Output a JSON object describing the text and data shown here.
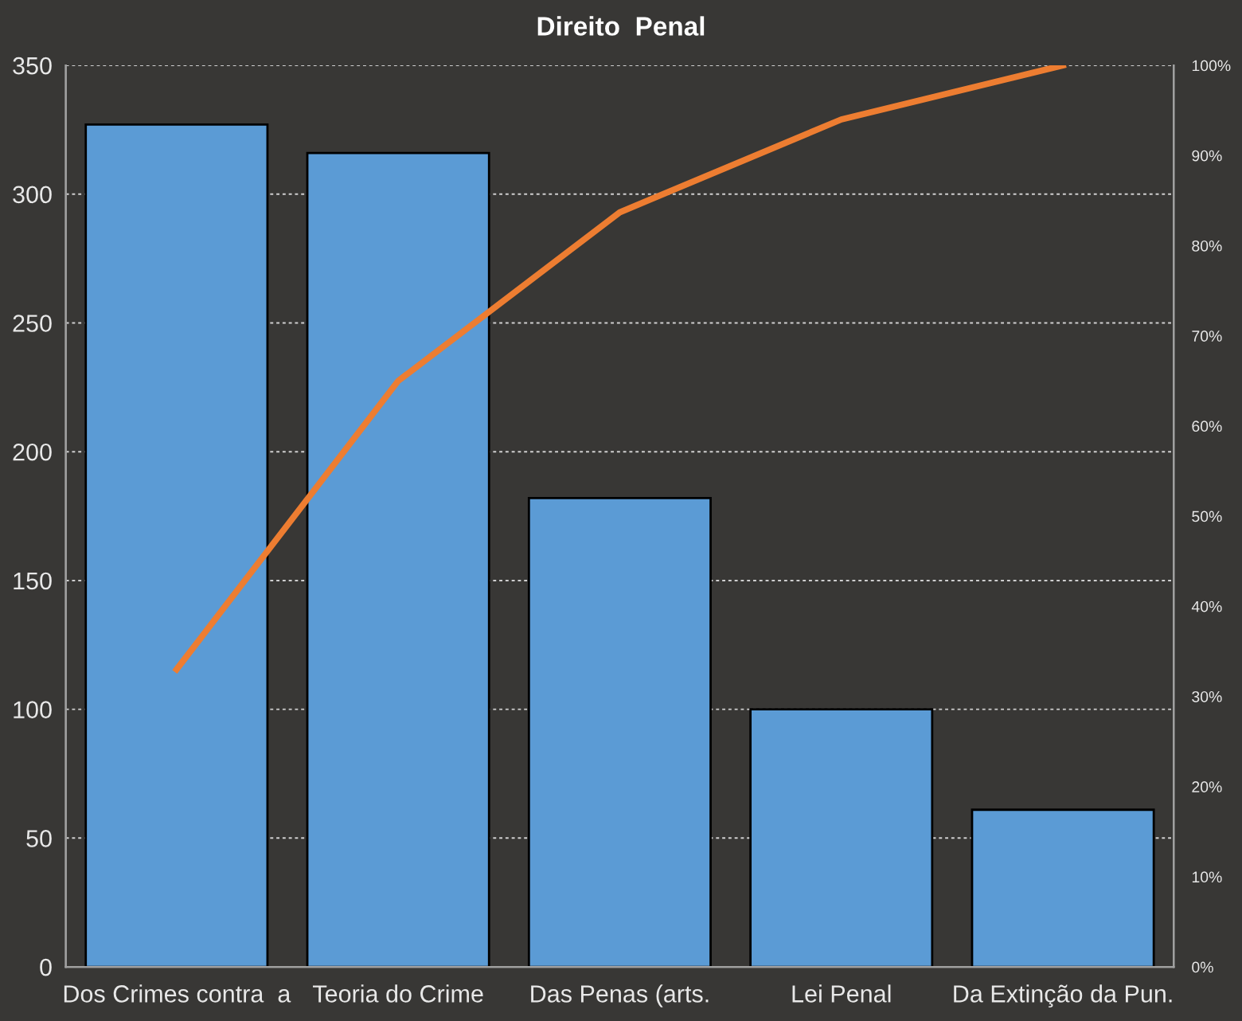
{
  "chart_data": {
    "type": "bar",
    "title": "Direito  Penal",
    "categories": [
      "Dos Crimes contra  a",
      "Teoria do Crime",
      "Das Penas (arts.",
      "Lei Penal",
      "Da Extinção da Pun."
    ],
    "series": [
      {
        "color": "#5b9bd5",
        "values": [
          327,
          316,
          182,
          100,
          61
        ]
      },
      {
        "type": "line",
        "axis": "y2",
        "color": "#ed7d31",
        "values": [
          33,
          65,
          83.7,
          94,
          100
        ]
      }
    ],
    "ylim": [
      0,
      350
    ],
    "yticks": [
      0,
      50,
      100,
      150,
      200,
      250,
      300,
      350
    ],
    "y2lim": [
      0,
      100
    ],
    "y2ticks": [
      {
        "value": 0,
        "label": "0%"
      },
      {
        "value": 10,
        "label": "10%"
      },
      {
        "value": 20,
        "label": "20%"
      },
      {
        "value": 30,
        "label": "30%"
      },
      {
        "value": 40,
        "label": "40%"
      },
      {
        "value": 50,
        "label": "50%"
      },
      {
        "value": 60,
        "label": "60%"
      },
      {
        "value": 70,
        "label": "70%"
      },
      {
        "value": 80,
        "label": "80%"
      },
      {
        "value": 90,
        "label": "90%"
      },
      {
        "value": 100,
        "label": "100%"
      }
    ],
    "grid": "y",
    "marker": "none",
    "line_style": "solid",
    "legend": false
  }
}
